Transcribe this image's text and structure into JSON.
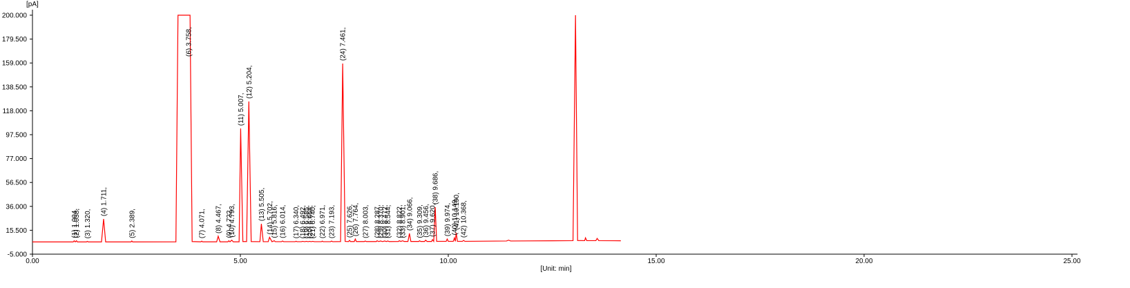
{
  "chart_data": {
    "type": "line",
    "y_label": "[pA]",
    "x_label": "[Unit: min]",
    "color": "#ff0000",
    "xlim": [
      0,
      25
    ],
    "ylim": [
      -5,
      200
    ],
    "xticks": [
      {
        "value": 0,
        "label": "0.00"
      },
      {
        "value": 5,
        "label": "5.00"
      },
      {
        "value": 10,
        "label": "10.00"
      },
      {
        "value": 15,
        "label": "15.00"
      },
      {
        "value": 20,
        "label": "20.00"
      },
      {
        "value": 25,
        "label": "25.00"
      }
    ],
    "yticks": [
      {
        "value": -5,
        "label": "-5.000"
      },
      {
        "value": 15.5,
        "label": "15.500"
      },
      {
        "value": 36,
        "label": "36.000"
      },
      {
        "value": 56.5,
        "label": "56.500"
      },
      {
        "value": 77,
        "label": "77.000"
      },
      {
        "value": 97.5,
        "label": "97.500"
      },
      {
        "value": 118,
        "label": "118.000"
      },
      {
        "value": 138.5,
        "label": "138.500"
      },
      {
        "value": 159,
        "label": "159.000"
      },
      {
        "value": 179.5,
        "label": "179.500"
      },
      {
        "value": 200,
        "label": "200.000"
      }
    ],
    "x": [
      0,
      0.98,
      1.004,
      1.03,
      1.058,
      1.08,
      1.3,
      1.32,
      1.34,
      1.66,
      1.711,
      1.76,
      2.37,
      2.389,
      2.41,
      3.45,
      3.5,
      3.79,
      3.84,
      4.05,
      4.071,
      4.09,
      4.43,
      4.467,
      4.51,
      4.7,
      4.722,
      4.75,
      4.793,
      4.83,
      4.97,
      5.007,
      5.06,
      5.15,
      5.204,
      5.26,
      5.47,
      5.505,
      5.55,
      5.67,
      5.702,
      5.76,
      5.816,
      5.84,
      5.99,
      6.014,
      6.04,
      6.32,
      6.34,
      6.36,
      6.47,
      6.492,
      6.55,
      6.585,
      6.63,
      6.668,
      6.7,
      6.74,
      6.78,
      6.95,
      6.971,
      6.99,
      7.17,
      7.193,
      7.22,
      7.41,
      7.461,
      7.52,
      7.6,
      7.626,
      7.65,
      7.74,
      7.764,
      7.79,
      7.98,
      8.003,
      8.03,
      8.27,
      8.287,
      8.33,
      8.37,
      8.42,
      8.472,
      8.51,
      8.544,
      8.58,
      8.8,
      8.822,
      8.86,
      8.901,
      8.94,
      9.03,
      9.066,
      9.1,
      9.29,
      9.309,
      9.34,
      9.43,
      9.456,
      9.49,
      9.6,
      9.62,
      9.65,
      9.686,
      9.72,
      9.95,
      9.974,
      10,
      10.12,
      10.149,
      10.17,
      10.19,
      10.22,
      10.34,
      10.368,
      10.4,
      11.4,
      11.45,
      11.5,
      12.5,
      13,
      13.06,
      13.11,
      13.28,
      13.3,
      13.33,
      13.55,
      13.58,
      13.62,
      14.15
    ],
    "values": [
      5.5,
      5.5,
      6.5,
      5.5,
      6.5,
      5.5,
      5.5,
      6.0,
      5.5,
      5.5,
      25.2,
      5.5,
      5.5,
      6.3,
      5.5,
      5.6,
      200,
      200,
      5.8,
      5.6,
      6.2,
      5.6,
      5.6,
      10.4,
      5.6,
      5.6,
      6.5,
      5.6,
      7.0,
      5.6,
      5.6,
      102.8,
      5.8,
      5.8,
      126,
      5.8,
      5.7,
      21,
      5.7,
      5.7,
      9.5,
      5.7,
      6.5,
      5.7,
      5.7,
      6.3,
      5.7,
      5.7,
      6.1,
      5.7,
      5.7,
      6.0,
      5.7,
      6.0,
      5.7,
      6.0,
      5.7,
      6.0,
      5.7,
      5.7,
      6.2,
      5.7,
      5.7,
      6.2,
      5.7,
      5.8,
      158.5,
      5.9,
      5.8,
      6.8,
      5.8,
      5.8,
      8.0,
      5.8,
      5.8,
      6.3,
      5.8,
      5.8,
      6.5,
      5.8,
      6.3,
      5.8,
      6.3,
      5.8,
      6.3,
      5.8,
      5.9,
      6.5,
      5.9,
      6.5,
      5.9,
      5.9,
      12.8,
      5.9,
      5.9,
      6.5,
      5.9,
      5.9,
      7.0,
      5.9,
      5.9,
      7.5,
      6.0,
      35.3,
      6.0,
      6.0,
      8.0,
      6.0,
      6.0,
      9.0,
      6.0,
      13.4,
      6.0,
      6.0,
      6.8,
      6.0,
      6.3,
      7.0,
      6.3,
      6.5,
      6.6,
      200,
      6.7,
      6.6,
      9.0,
      6.6,
      6.6,
      8.5,
      6.6,
      6.5
    ],
    "peaks": {
      "x": [
        1.004,
        1.058,
        1.32,
        1.711,
        2.389,
        3.758,
        4.071,
        4.467,
        4.722,
        4.793,
        5.007,
        5.204,
        5.505,
        5.702,
        5.816,
        6.014,
        6.34,
        6.492,
        6.585,
        6.668,
        6.74,
        6.971,
        7.193,
        7.461,
        7.626,
        7.764,
        8.003,
        8.287,
        8.37,
        8.472,
        8.544,
        8.822,
        8.901,
        9.066,
        9.309,
        9.456,
        9.62,
        9.686,
        9.974,
        10.149,
        10.19,
        10.368
      ],
      "labels": [
        "(1) 1.004,",
        "(2) 1.058,",
        "(3) 1.320,",
        "(4) 1.711,",
        "(5) 2.389,",
        "(6) 3.758,",
        "(7) 4.071,",
        "(8) 4.467,",
        "(9) 4.722,",
        "(10) 4.793,",
        "(11) 5.007,",
        "(12) 5.204,",
        "(13) 5.505,",
        "(14) 5.702,",
        "(15) 5.816,",
        "(16) 6.014,",
        "(17) 6.340,",
        "(18) 6.492,",
        "(19) 6.585,",
        "(20) 6.668,",
        "(21) 6.740,",
        "(22) 6.971,",
        "(23) 7.193,",
        "(24) 7.461,",
        "(25) 7.626,",
        "(26) 7.764,",
        "(27) 8.003,",
        "(28) 8.287,",
        "(29) 8.370,",
        "(30) 8.472,",
        "(31) 8.544,",
        "(32) 8.822,",
        "(33) 8.901,",
        "(34) 9.066,",
        "(35) 9.309,",
        "(36) 9.456,",
        "(37) 9.620,",
        "(38) 9.686,",
        "(39) 9.974,",
        "(40) 10.149,",
        "(41) 10.190,",
        "(42) 10.368,"
      ]
    }
  }
}
